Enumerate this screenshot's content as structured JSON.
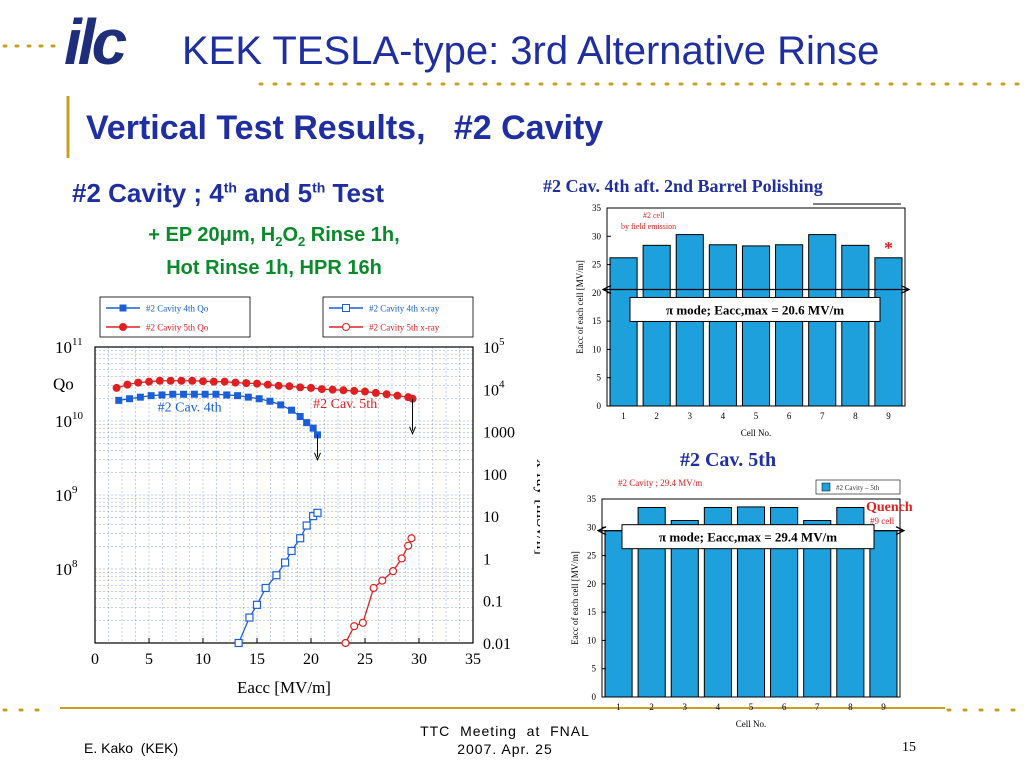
{
  "header": {
    "logo_text": "ilc",
    "title": "KEK TESLA-type: 3rd Alternative Rinse"
  },
  "slide": {
    "subtitle": "Vertical Test Results,   #2 Cavity",
    "left_heading": "#2 Cavity ; 4th and 5th Test",
    "process_line1": "+ EP 20μm, H2O2 Rinse 1h,",
    "process_line2": "Hot Rinse 1h, HPR 16h"
  },
  "footer": {
    "author": "E. Kako  (KEK)",
    "meeting_line1": "TTC  Meeting  at  FNAL",
    "meeting_line2": "2007. Apr. 25",
    "page_number": "15"
  },
  "colors": {
    "blue": "#1a5fd6",
    "red": "#e02020",
    "bar": "#1ea0dc",
    "title_blue": "#1f2ea0",
    "green": "#0a8a2a",
    "gold": "#c8a020"
  },
  "chart_data": [
    {
      "type": "scatter",
      "xlabel": "Eacc  [MV/m]",
      "ylabel": "Qo",
      "y2label": "x-ray  [mSv/h]",
      "xlim": [
        0,
        35
      ],
      "ylim": [
        10000000.0,
        100000000000.0
      ],
      "y2lim": [
        0.01,
        100000
      ],
      "y_scale": "log",
      "x_ticks": [
        "0",
        "5",
        "10",
        "15",
        "20",
        "25",
        "30",
        "35"
      ],
      "y2_ticks": [
        "0.01",
        "0.1",
        "1",
        "10",
        "100",
        "1000"
      ],
      "legend": [
        "#2 Cavity 4th Qo",
        "#2 Cavity 5th Qo",
        "#2 Cavity 4th x-ray",
        "#2 Cavity 5th x-ray"
      ],
      "annotations": [
        "#2 Cav. 4th",
        "#2 Cav. 5th"
      ],
      "series": [
        {
          "name": "#2 Cavity 4th Qo",
          "axis": "left",
          "marker": "filled-square",
          "color": "#1a5fd6",
          "x": [
            2.2,
            3.2,
            4.2,
            5.2,
            6.2,
            7.2,
            8.2,
            9.2,
            10.2,
            11.2,
            12.2,
            13.2,
            14.2,
            15.2,
            16.2,
            17.2,
            18.2,
            19.0,
            19.6,
            20.2,
            20.6
          ],
          "y": [
            19000000000.0,
            20000000000.0,
            21000000000.0,
            22000000000.0,
            22500000000.0,
            23000000000.0,
            23000000000.0,
            23000000000.0,
            23000000000.0,
            23000000000.0,
            22500000000.0,
            22000000000.0,
            21000000000.0,
            20000000000.0,
            18500000000.0,
            16500000000.0,
            14000000000.0,
            11500000000.0,
            9500000000.0,
            8000000000.0,
            6500000000.0
          ]
        },
        {
          "name": "#2 Cavity 5th Qo",
          "axis": "left",
          "marker": "filled-circle",
          "color": "#e02020",
          "x": [
            2,
            3,
            4,
            5,
            6,
            7,
            8,
            9,
            10,
            11,
            12,
            13,
            14,
            15,
            16,
            17,
            18,
            19,
            20,
            21,
            22,
            23,
            24,
            25,
            26,
            27,
            28,
            29,
            29.4
          ],
          "y": [
            28000000000.0,
            31000000000.0,
            33000000000.0,
            34000000000.0,
            35000000000.0,
            35000000000.0,
            35000000000.0,
            35000000000.0,
            34500000000.0,
            34000000000.0,
            34000000000.0,
            33000000000.0,
            32500000000.0,
            32000000000.0,
            31000000000.0,
            30000000000.0,
            29500000000.0,
            28500000000.0,
            28000000000.0,
            27000000000.0,
            26500000000.0,
            26000000000.0,
            25500000000.0,
            25000000000.0,
            24000000000.0,
            23000000000.0,
            22000000000.0,
            21000000000.0,
            20000000000.0
          ]
        },
        {
          "name": "#2 Cavity 4th x-ray",
          "axis": "right",
          "marker": "open-square",
          "color": "#1a5fd6",
          "x": [
            13.3,
            14.3,
            15.0,
            15.8,
            16.8,
            17.6,
            18.2,
            19.0,
            19.6,
            20.2,
            20.6
          ],
          "y": [
            0.01,
            0.04,
            0.08,
            0.2,
            0.4,
            0.8,
            1.5,
            3.0,
            6.0,
            10.0,
            12.0
          ]
        },
        {
          "name": "#2 Cavity 5th x-ray",
          "axis": "right",
          "marker": "open-circle",
          "color": "#e02020",
          "x": [
            23.2,
            24.0,
            24.8,
            25.8,
            26.6,
            27.6,
            28.4,
            29.0,
            29.3
          ],
          "y": [
            0.01,
            0.025,
            0.03,
            0.2,
            0.3,
            0.5,
            1.0,
            2.0,
            3.0
          ]
        }
      ]
    },
    {
      "type": "bar",
      "title": "#2 Cav. 4th aft. 2nd Barrel Polishing",
      "xlabel": "Cell No.",
      "ylabel": "Eacc of each cell  [MV/m]",
      "ylim": [
        0,
        35
      ],
      "y_ticks": [
        "0",
        "5",
        "10",
        "15",
        "20",
        "25",
        "30",
        "35"
      ],
      "categories": [
        "1",
        "2",
        "3",
        "4",
        "5",
        "6",
        "7",
        "8",
        "9"
      ],
      "values": [
        26.2,
        28.4,
        30.3,
        28.5,
        28.3,
        28.5,
        30.3,
        28.4,
        26.2
      ],
      "annotation_top": "#2 cell",
      "annotation_sub": "by field emission",
      "marker": "*",
      "mode_label": "π mode; Eacc,max = 20.6 MV/m",
      "mode_value": 20.6
    },
    {
      "type": "bar",
      "title": "#2 Cav. 5th",
      "xlabel": "Cell No.",
      "ylabel": "Eacc of each cell  [MV/m]",
      "ylim": [
        0,
        35
      ],
      "y_ticks": [
        "0",
        "5",
        "10",
        "15",
        "20",
        "25",
        "30",
        "35"
      ],
      "categories": [
        "1",
        "2",
        "3",
        "4",
        "5",
        "6",
        "7",
        "8",
        "9"
      ],
      "values": [
        29.4,
        33.5,
        31.2,
        33.5,
        33.6,
        33.5,
        31.2,
        33.5,
        29.4
      ],
      "annotation_top": "#2 Cavity ; 29.4 MV/m",
      "legend": "#2 Cavity – 5th",
      "quench_label": "Quench",
      "quench_sub": "#9 cell",
      "mode_label": "π mode; Eacc,max = 29.4 MV/m",
      "mode_value": 29.4
    }
  ]
}
